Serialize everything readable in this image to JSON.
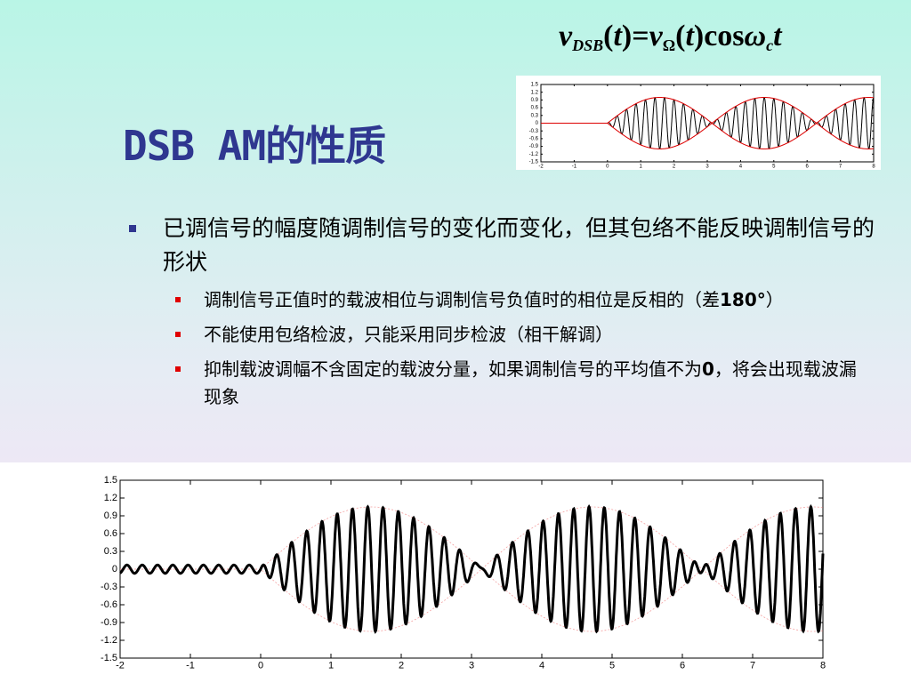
{
  "title": "DSB AM的性质",
  "formula": [
    "v",
    "DSB",
    "(",
    "t",
    ")",
    "=",
    "v",
    "Ω",
    "(",
    "t",
    ")",
    "cos",
    "ω",
    "c",
    "t"
  ],
  "bullet": {
    "text": "已调信号的幅度随调制信号的变化而变化，但其包络不能反映调制信号的形状",
    "sub_bullets": [
      [
        "调制信号正值时的载波相位与调制信号负值时的相位是反相的（差",
        "180°",
        "）"
      ],
      [
        "不能使用包络检波，只能采用同步检波（相干解调）"
      ],
      [
        "抑制载波调幅不含固定的载波分量，如果调制信号的平均值不为",
        "0",
        "，将会出现载波漏现象"
      ]
    ]
  },
  "chart_data": [
    {
      "type": "line",
      "xlim": [
        -2,
        8
      ],
      "ylim": [
        -1.5,
        1.5
      ],
      "xticks": [
        -2,
        -1,
        0,
        1,
        2,
        3,
        4,
        5,
        6,
        7,
        8
      ],
      "yticks": [
        1.5,
        1.2,
        0.9,
        0.6,
        0.3,
        0,
        -0.3,
        -0.6,
        -0.9,
        -1.2,
        -1.5
      ]
    },
    {
      "type": "line",
      "xlim": [
        -2,
        8
      ],
      "ylim": [
        -1.5,
        1.5
      ],
      "xticks": [
        -2,
        -1,
        0,
        1,
        2,
        3,
        4,
        5,
        6,
        7,
        8
      ],
      "yticks": [
        1.5,
        1.2,
        0.9,
        0.6,
        0.3,
        0,
        -0.3,
        -0.6,
        -0.9,
        -1.2,
        -1.5
      ]
    }
  ]
}
